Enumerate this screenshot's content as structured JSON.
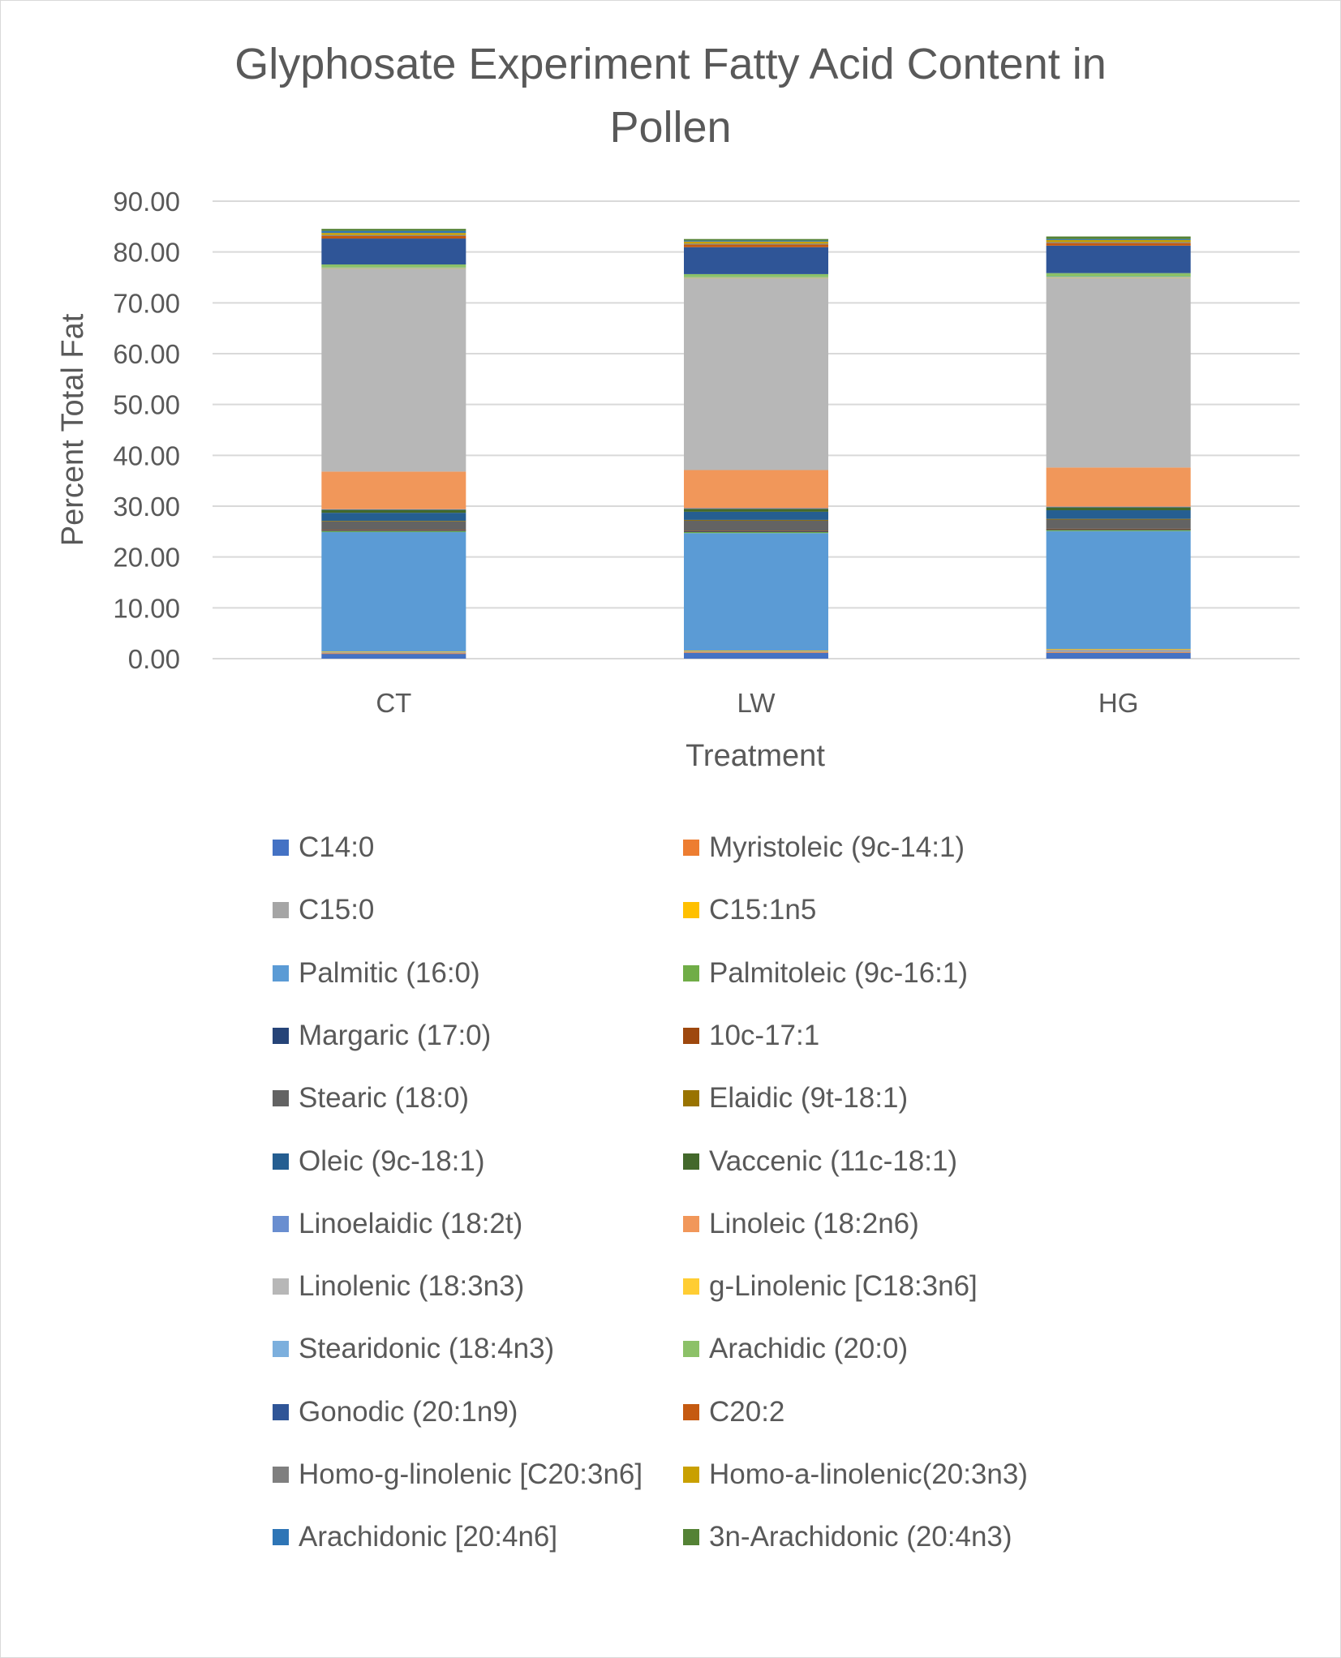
{
  "chart_data": {
    "type": "bar",
    "stacked": true,
    "title": "Glyphosate Experiment Fatty Acid Content in Pollen",
    "title_lines": [
      "Glyphosate Experiment Fatty Acid Content in",
      "Pollen"
    ],
    "xlabel": "Treatment",
    "ylabel": "Percent Total Fat",
    "ylim": [
      0,
      90
    ],
    "yticks": [
      "0.00",
      "10.00",
      "20.00",
      "30.00",
      "40.00",
      "50.00",
      "60.00",
      "70.00",
      "80.00",
      "90.00"
    ],
    "categories": [
      "CT",
      "LW",
      "HG"
    ],
    "grid": true,
    "legend_position": "bottom",
    "series": [
      {
        "name": "C14:0",
        "color": "#4472c4",
        "values": [
          1.0,
          1.2,
          1.2
        ]
      },
      {
        "name": "Myristoleic (9c-14:1)",
        "color": "#ed7d31",
        "values": [
          0.05,
          0.05,
          0.05
        ]
      },
      {
        "name": "C15:0",
        "color": "#a5a5a5",
        "values": [
          0.3,
          0.3,
          0.6
        ]
      },
      {
        "name": "C15:1n5",
        "color": "#ffc000",
        "values": [
          0.05,
          0.05,
          0.05
        ]
      },
      {
        "name": "Palmitic (16:0)",
        "color": "#5b9bd5",
        "values": [
          23.5,
          23.1,
          23.2
        ]
      },
      {
        "name": "Palmitoleic (9c-16:1)",
        "color": "#70ad47",
        "values": [
          0.2,
          0.2,
          0.2
        ]
      },
      {
        "name": "Margaric (17:0)",
        "color": "#264478",
        "values": [
          0.2,
          0.2,
          0.2
        ]
      },
      {
        "name": "10c-17:1",
        "color": "#9e480e",
        "values": [
          0.05,
          0.05,
          0.05
        ]
      },
      {
        "name": "Stearic (18:0)",
        "color": "#636363",
        "values": [
          1.7,
          2.1,
          1.9
        ]
      },
      {
        "name": "Elaidic (9t-18:1)",
        "color": "#997300",
        "values": [
          0.05,
          0.05,
          0.05
        ]
      },
      {
        "name": "Oleic (9c-18:1)",
        "color": "#255e91",
        "values": [
          1.6,
          1.6,
          1.7
        ]
      },
      {
        "name": "Vaccenic (11c-18:1)",
        "color": "#43682b",
        "values": [
          0.6,
          0.6,
          0.6
        ]
      },
      {
        "name": "Linoelaidic (18:2t)",
        "color": "#698ed0",
        "values": [
          0.1,
          0.1,
          0.1
        ]
      },
      {
        "name": "Linoleic (18:2n6)",
        "color": "#f1975a",
        "values": [
          7.4,
          7.5,
          7.7
        ]
      },
      {
        "name": "Linolenic (18:3n3)",
        "color": "#b7b7b7",
        "values": [
          40.0,
          37.8,
          37.4
        ]
      },
      {
        "name": "g-Linolenic [C18:3n6]",
        "color": "#ffcd33",
        "values": [
          0.05,
          0.05,
          0.05
        ]
      },
      {
        "name": "Stearidonic (18:4n3)",
        "color": "#7cafdd",
        "values": [
          0.1,
          0.1,
          0.1
        ]
      },
      {
        "name": "Arachidic (20:0)",
        "color": "#8cc168",
        "values": [
          0.6,
          0.6,
          0.7
        ]
      },
      {
        "name": "Gonodic (20:1n9)",
        "color": "#2f5597",
        "values": [
          5.1,
          5.3,
          5.4
        ]
      },
      {
        "name": "C20:2",
        "color": "#c55a11",
        "values": [
          0.5,
          0.5,
          0.5
        ]
      },
      {
        "name": "Homo-g-linolenic [C20:3n6]",
        "color": "#7f7f7f",
        "values": [
          0.2,
          0.2,
          0.2
        ]
      },
      {
        "name": "Homo-a-linolenic(20:3n3)",
        "color": "#c9a000",
        "values": [
          0.4,
          0.4,
          0.4
        ]
      },
      {
        "name": "Arachidonic [20:4n6]",
        "color": "#2e75b6",
        "values": [
          0.4,
          0.2,
          0.2
        ]
      },
      {
        "name": "3n-Arachidonic (20:4n3)",
        "color": "#548235",
        "values": [
          0.4,
          0.3,
          0.5
        ]
      }
    ]
  }
}
